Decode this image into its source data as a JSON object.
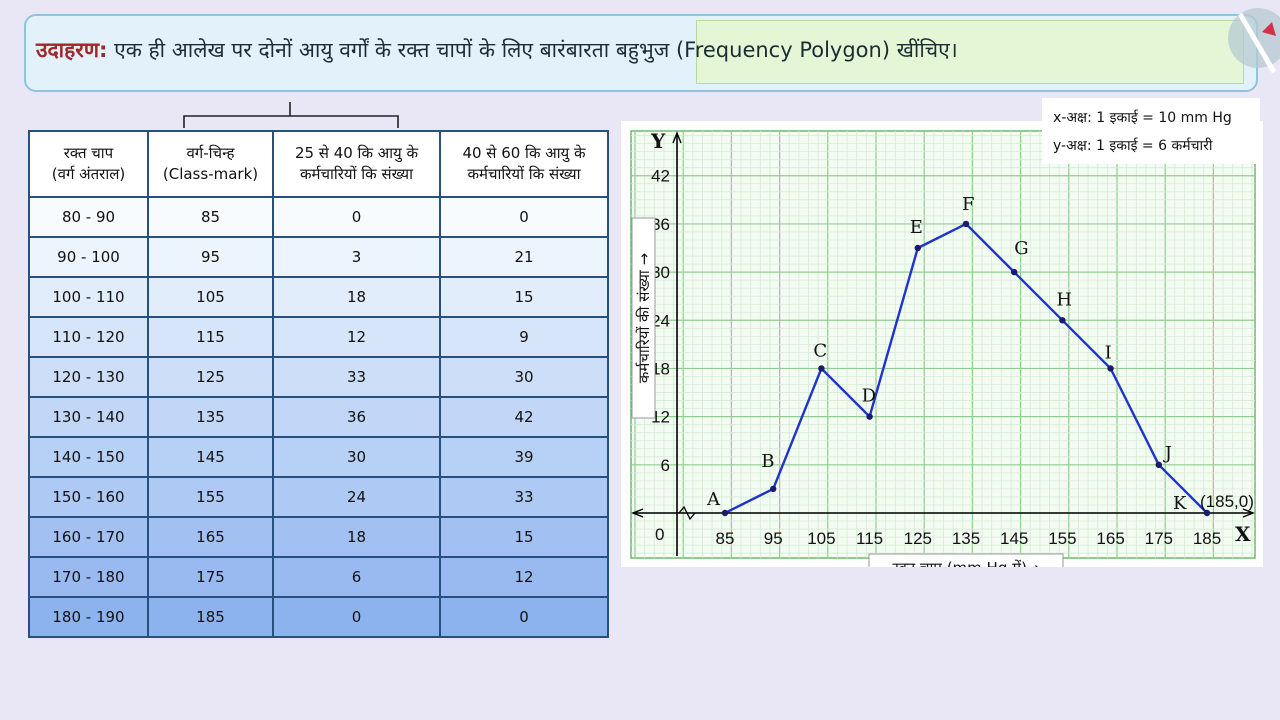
{
  "title": {
    "label": "उदाहरण:",
    "text": " एक ही आलेख पर दोनों आयु वर्गों के रक्त चापों के लिए बारंबारता बहुभुज (Frequency Polygon) खींचिए।"
  },
  "table": {
    "headers": [
      [
        "रक्त चाप",
        "(वर्ग अंतराल)"
      ],
      [
        "वर्ग-चिन्ह",
        "(Class-mark)"
      ],
      [
        "25 से 40 कि आयु के",
        "कर्मचारियों कि संख्या"
      ],
      [
        "40 से 60 कि आयु के",
        "कर्मचारियों कि संख्या"
      ]
    ],
    "rows": [
      [
        "80 - 90",
        "85",
        "0",
        "0"
      ],
      [
        "90 - 100",
        "95",
        "3",
        "21"
      ],
      [
        "100 - 110",
        "105",
        "18",
        "15"
      ],
      [
        "110 - 120",
        "115",
        "12",
        "9"
      ],
      [
        "120 - 130",
        "125",
        "33",
        "30"
      ],
      [
        "130 - 140",
        "135",
        "36",
        "42"
      ],
      [
        "140 - 150",
        "145",
        "30",
        "39"
      ],
      [
        "150 - 160",
        "155",
        "24",
        "33"
      ],
      [
        "160 - 170",
        "165",
        "18",
        "15"
      ],
      [
        "170 - 180",
        "175",
        "6",
        "12"
      ],
      [
        "180 - 190",
        "185",
        "0",
        "0"
      ]
    ]
  },
  "legend": {
    "x_scale": "x-अक्ष: 1 इकाई = 10 mm Hg",
    "y_scale": "y-अक्ष: 1 इकाई = 6 कर्मचारी"
  },
  "colors": {
    "line": "#1f35c8",
    "grid_major": "#8fce8f",
    "grid_minor": "#d2ecd2",
    "table_top": "#f7fbfe",
    "table_bottom": "#8db3ef"
  },
  "chart_data": {
    "type": "line",
    "xlabel": "रक्त चाप (mm Hg में)",
    "ylabel": "कर्मचारियों की संख्या",
    "x_axis_letter": "X",
    "y_axis_letter": "Y",
    "origin_label": "0",
    "x_ticks": [
      85,
      95,
      105,
      115,
      125,
      135,
      145,
      155,
      165,
      175,
      185
    ],
    "y_ticks": [
      6,
      12,
      18,
      24,
      30,
      36,
      42
    ],
    "xlim": [
      75,
      195
    ],
    "ylim": [
      0,
      42
    ],
    "grid": true,
    "series": [
      {
        "x": [
          85,
          95,
          105,
          115,
          125,
          135,
          145,
          155,
          165,
          175,
          185
        ],
        "y": [
          0,
          3,
          18,
          12,
          33,
          36,
          30,
          24,
          18,
          6,
          0
        ],
        "point_labels": [
          "A",
          "B",
          "C",
          "D",
          "E",
          "F",
          "G",
          "H",
          "I",
          "J",
          "K"
        ]
      }
    ],
    "annotations": [
      {
        "text": "(185,0)",
        "x": 185,
        "y": 0
      }
    ]
  }
}
